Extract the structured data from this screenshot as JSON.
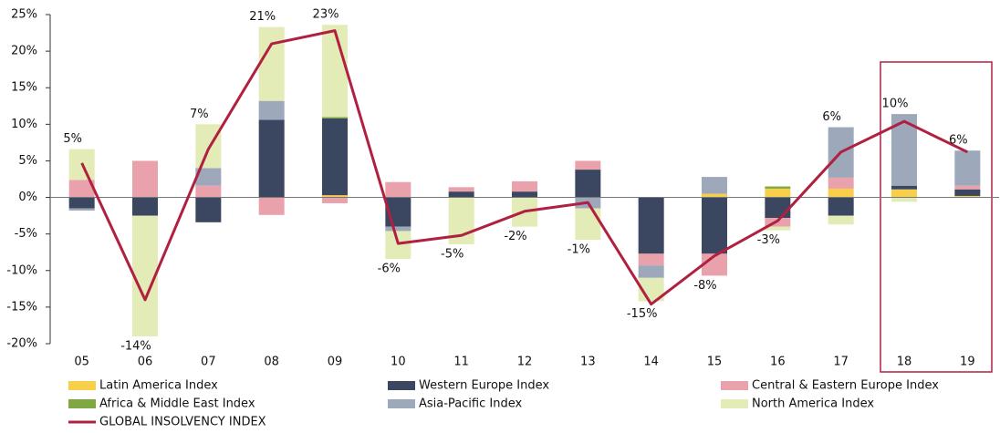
{
  "chart_data": {
    "type": "stacked_bar_line",
    "categories": [
      "05",
      "06",
      "07",
      "08",
      "09",
      "10",
      "11",
      "12",
      "13",
      "14",
      "15",
      "16",
      "17",
      "18",
      "19"
    ],
    "series": [
      {
        "name": "Latin America Index",
        "color": "#f7cf4a",
        "values": [
          0,
          0,
          0,
          0,
          0.3,
          0,
          0,
          0,
          0,
          0,
          0.5,
          1.2,
          1.2,
          1.1,
          0.2
        ]
      },
      {
        "name": "Western Europe Index",
        "color": "#3b4660",
        "values": [
          -1.5,
          -2.5,
          -3.4,
          10.6,
          10.5,
          -4,
          0.8,
          0.8,
          3.8,
          -7.7,
          -7.7,
          -2.8,
          -2.5,
          0.5,
          0.9
        ]
      },
      {
        "name": "Central & Eastern Europe Index",
        "color": "#e9a2ab",
        "values": [
          2.4,
          5,
          1.6,
          -2.4,
          -0.8,
          2.1,
          0.6,
          1.4,
          1.2,
          -1.6,
          -3,
          -1.2,
          1.5,
          0,
          0.5
        ]
      },
      {
        "name": "Africa & Middle East Index",
        "color": "#7fa843",
        "values": [
          0,
          0,
          0,
          0,
          0.2,
          0,
          0,
          0,
          0,
          0,
          0,
          0.3,
          0,
          0,
          0
        ]
      },
      {
        "name": "Asia-Pacific Index",
        "color": "#9ea8bb",
        "values": [
          -0.3,
          0,
          2.4,
          2.6,
          0,
          -0.6,
          0,
          0,
          -1.5,
          -1.7,
          2.3,
          0,
          6.9,
          9.8,
          4.8
        ]
      },
      {
        "name": "North America Index",
        "color": "#e3ebb6",
        "values": [
          4.2,
          -16.5,
          6,
          10.1,
          12.6,
          -3.8,
          -6.4,
          -4,
          -4.3,
          -3.2,
          0,
          -0.5,
          -1.2,
          -0.6,
          0
        ]
      }
    ],
    "line": {
      "name": "GLOBAL INSOLVENCY INDEX",
      "color": "#b02040",
      "values": [
        4.7,
        -14,
        6.6,
        21,
        22.8,
        -6.3,
        -5.2,
        -1.9,
        -0.7,
        -14.6,
        -8,
        -3.2,
        6.2,
        10.4,
        6.2
      ],
      "value_labels": [
        "5%",
        "-14%",
        "7%",
        "21%",
        "23%",
        "-6%",
        "-5%",
        "-2%",
        "-1%",
        "-15%",
        "-8%",
        "-3%",
        "6%",
        "10%",
        "6%"
      ]
    },
    "ylim": [
      -20,
      25
    ],
    "yticks": [
      {
        "value": -20,
        "label": "-20%"
      },
      {
        "value": -15,
        "label": "-15%"
      },
      {
        "value": -10,
        "label": "-10%"
      },
      {
        "value": -5,
        "label": "-5%"
      },
      {
        "value": 0,
        "label": "0%"
      },
      {
        "value": 5,
        "label": "5%"
      },
      {
        "value": 10,
        "label": "10%"
      },
      {
        "value": 15,
        "label": "15%"
      },
      {
        "value": 20,
        "label": "20%"
      },
      {
        "value": 25,
        "label": "25%"
      }
    ]
  }
}
